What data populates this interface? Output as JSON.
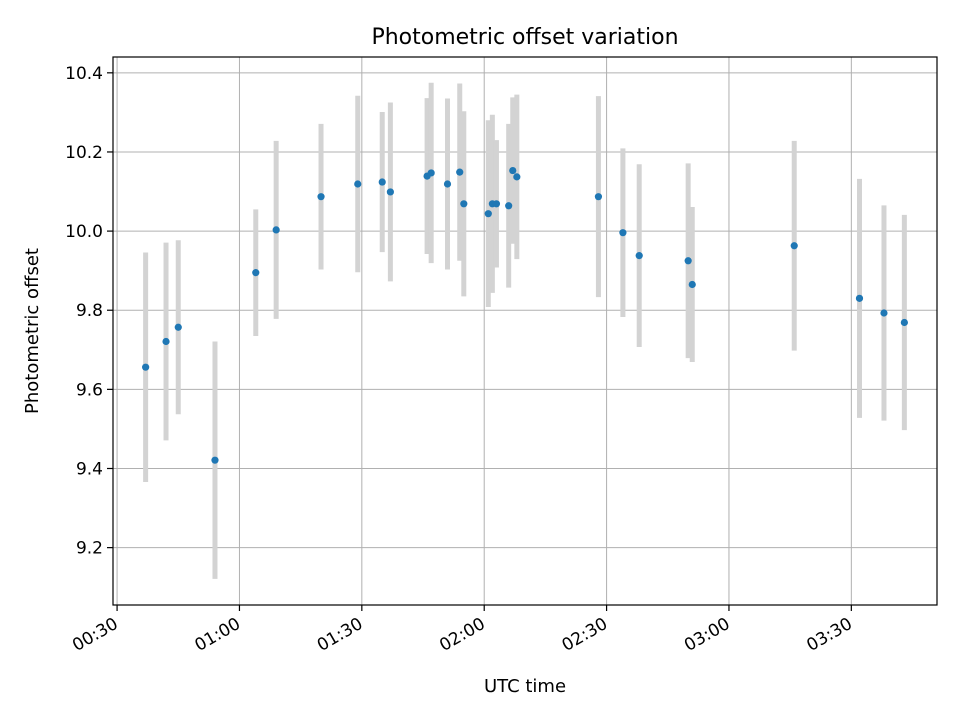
{
  "chart_data": {
    "type": "scatter",
    "title": "Photometric offset variation",
    "xlabel": "UTC time",
    "ylabel": "Photometric offset",
    "x_unit": "UTC time (hh:mm)",
    "xlim": [
      "00:29",
      "03:51"
    ],
    "ylim": [
      9.055,
      10.44
    ],
    "x_ticks": [
      "00:30",
      "01:00",
      "01:30",
      "02:00",
      "02:30",
      "03:00",
      "03:30"
    ],
    "y_ticks": [
      9.2,
      9.4,
      9.6,
      9.8,
      10.0,
      10.2,
      10.4
    ],
    "y_tick_labels": [
      "9.2",
      "9.4",
      "9.6",
      "9.8",
      "10.0",
      "10.2",
      "10.4"
    ],
    "grid": true,
    "colors": {
      "point": "#1f77b4",
      "errorbar": "#d3d3d3",
      "grid": "#b0b0b0"
    },
    "series": [
      {
        "points": [
          {
            "x": "00:37",
            "y": 9.656,
            "err": 0.29
          },
          {
            "x": "00:42",
            "y": 9.721,
            "err": 0.25
          },
          {
            "x": "00:45",
            "y": 9.757,
            "err": 0.22
          },
          {
            "x": "00:54",
            "y": 9.421,
            "err": 0.3
          },
          {
            "x": "01:04",
            "y": 9.895,
            "err": 0.16
          },
          {
            "x": "01:09",
            "y": 10.003,
            "err": 0.225
          },
          {
            "x": "01:20",
            "y": 10.087,
            "err": 0.184
          },
          {
            "x": "01:29",
            "y": 10.119,
            "err": 0.223
          },
          {
            "x": "01:35",
            "y": 10.124,
            "err": 0.177
          },
          {
            "x": "01:37",
            "y": 10.099,
            "err": 0.226
          },
          {
            "x": "01:46",
            "y": 10.139,
            "err": 0.197
          },
          {
            "x": "01:47",
            "y": 10.147,
            "err": 0.228
          },
          {
            "x": "01:51",
            "y": 10.119,
            "err": 0.216
          },
          {
            "x": "01:54",
            "y": 10.149,
            "err": 0.224
          },
          {
            "x": "01:55",
            "y": 10.069,
            "err": 0.234
          },
          {
            "x": "02:01",
            "y": 10.044,
            "err": 0.236
          },
          {
            "x": "02:02",
            "y": 10.069,
            "err": 0.225
          },
          {
            "x": "02:03",
            "y": 10.069,
            "err": 0.161
          },
          {
            "x": "02:06",
            "y": 10.064,
            "err": 0.207
          },
          {
            "x": "02:07",
            "y": 10.153,
            "err": 0.185
          },
          {
            "x": "02:08",
            "y": 10.137,
            "err": 0.208
          },
          {
            "x": "02:28",
            "y": 10.087,
            "err": 0.254
          },
          {
            "x": "02:34",
            "y": 9.996,
            "err": 0.213
          },
          {
            "x": "02:38",
            "y": 9.938,
            "err": 0.231
          },
          {
            "x": "02:50",
            "y": 9.925,
            "err": 0.246
          },
          {
            "x": "02:51",
            "y": 9.865,
            "err": 0.196
          },
          {
            "x": "03:16",
            "y": 9.963,
            "err": 0.265
          },
          {
            "x": "03:32",
            "y": 9.83,
            "err": 0.302
          },
          {
            "x": "03:38",
            "y": 9.793,
            "err": 0.272
          },
          {
            "x": "03:43",
            "y": 9.769,
            "err": 0.272
          }
        ]
      }
    ]
  }
}
